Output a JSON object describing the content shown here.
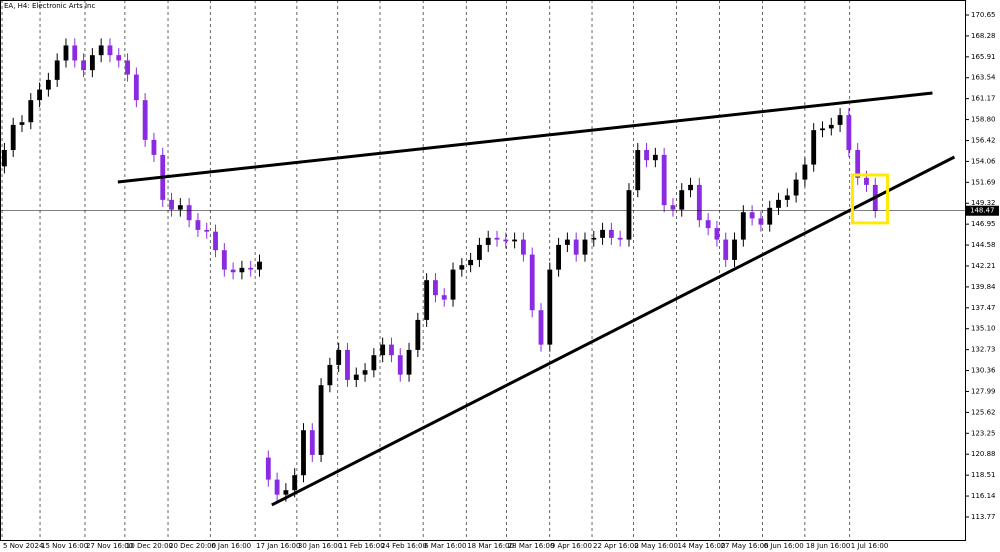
{
  "chart_data": {
    "type": "candlestick",
    "title": "EA, H4: Electronic Arts Inc",
    "up_color": "#000000",
    "down_color": "#8a2be2",
    "trendline_color": "#000000",
    "open": [
      153.5,
      155.35,
      158.2,
      158.5,
      161.0,
      162.2,
      163.3,
      165.5,
      167.2,
      165.5,
      164.4,
      166.1,
      167.2,
      166.1,
      165.5,
      163.9,
      161.0,
      156.5,
      154.8,
      149.7,
      148.6,
      149.1,
      147.4,
      146.3,
      146.1,
      144.0,
      141.8,
      141.5,
      142.0,
      141.8,
      120.5,
      118.0,
      116.3,
      116.8,
      118.5,
      123.6,
      120.8,
      128.7,
      131.0,
      132.7,
      129.3,
      129.9,
      130.4,
      132.1,
      133.3,
      132.1,
      129.9,
      132.7,
      136.1,
      140.6,
      138.9,
      138.4,
      141.8,
      142.3,
      142.9,
      144.6,
      145.4,
      145.2,
      145.0,
      145.2,
      143.5,
      137.2,
      133.3,
      141.8,
      144.6,
      145.2,
      143.5,
      145.2,
      145.4,
      146.3,
      145.4,
      145.2,
      150.8,
      155.35,
      154.2,
      154.8,
      149.1,
      148.6,
      150.8,
      151.4,
      147.4,
      146.5,
      145.2,
      142.9,
      145.2,
      148.3,
      147.6,
      146.9,
      148.8,
      149.7,
      150.2,
      152.0,
      153.7,
      157.6,
      157.8,
      158.2,
      159.3,
      155.35,
      152.2,
      151.4
    ],
    "high": [
      156.15,
      159.0,
      159.3,
      161.8,
      163.0,
      164.1,
      166.3,
      168.0,
      168.0,
      166.3,
      166.9,
      168.0,
      168.0,
      166.9,
      166.3,
      164.7,
      161.8,
      157.3,
      155.6,
      150.5,
      149.9,
      149.9,
      148.2,
      147.1,
      146.9,
      144.8,
      142.6,
      142.8,
      142.8,
      143.5,
      121.3,
      118.8,
      117.6,
      119.3,
      124.4,
      124.4,
      129.5,
      131.8,
      133.5,
      133.5,
      130.7,
      131.2,
      132.9,
      134.1,
      134.1,
      132.9,
      133.5,
      136.9,
      141.4,
      141.4,
      139.7,
      142.6,
      143.1,
      143.7,
      145.4,
      146.2,
      146.2,
      146.0,
      146.0,
      146.0,
      144.3,
      138.0,
      142.6,
      145.4,
      146.0,
      146.0,
      146.0,
      146.2,
      147.1,
      147.1,
      146.2,
      151.6,
      156.15,
      156.15,
      155.6,
      155.6,
      149.9,
      151.6,
      152.2,
      152.2,
      148.2,
      147.3,
      146.0,
      146.0,
      149.1,
      149.1,
      148.4,
      149.6,
      150.5,
      151.0,
      152.8,
      154.5,
      158.4,
      158.6,
      159.0,
      160.1,
      160.1,
      156.15,
      153.0,
      152.2
    ],
    "low": [
      152.7,
      154.55,
      157.4,
      157.7,
      160.2,
      161.4,
      162.5,
      164.7,
      164.7,
      163.6,
      163.6,
      165.3,
      165.3,
      164.7,
      163.1,
      160.2,
      155.7,
      154.0,
      148.9,
      147.8,
      147.8,
      146.6,
      145.5,
      145.3,
      143.2,
      141.0,
      140.7,
      140.7,
      141.0,
      141.0,
      117.2,
      115.5,
      115.5,
      116.0,
      117.7,
      120.0,
      120.0,
      127.9,
      130.2,
      128.5,
      128.5,
      129.1,
      129.6,
      131.3,
      131.3,
      129.1,
      129.1,
      131.9,
      135.3,
      138.1,
      137.6,
      137.6,
      141.0,
      141.5,
      142.1,
      143.8,
      144.4,
      144.2,
      144.2,
      142.7,
      136.4,
      132.5,
      132.5,
      141.0,
      143.8,
      142.7,
      142.7,
      144.4,
      144.6,
      144.6,
      144.4,
      144.4,
      150.0,
      153.4,
      153.4,
      148.3,
      147.8,
      147.8,
      150.0,
      146.6,
      145.7,
      144.4,
      142.1,
      142.1,
      144.4,
      146.8,
      146.1,
      146.1,
      148.0,
      148.9,
      149.4,
      151.2,
      152.9,
      156.8,
      157.0,
      157.4,
      154.55,
      151.4,
      150.6,
      147.67
    ],
    "close": [
      155.35,
      158.2,
      158.5,
      161.0,
      162.2,
      163.3,
      165.5,
      167.2,
      165.5,
      164.4,
      166.1,
      167.2,
      166.1,
      165.5,
      163.9,
      161.0,
      156.5,
      154.8,
      149.7,
      148.6,
      149.1,
      147.4,
      146.3,
      146.1,
      144.0,
      141.8,
      141.5,
      142.0,
      141.8,
      142.7,
      118.0,
      116.3,
      116.8,
      118.5,
      123.6,
      120.8,
      128.7,
      131.0,
      132.7,
      129.3,
      129.9,
      130.4,
      132.1,
      133.3,
      132.1,
      129.9,
      132.7,
      136.1,
      140.6,
      138.9,
      138.4,
      141.8,
      142.3,
      142.9,
      144.6,
      145.4,
      145.2,
      145.0,
      145.2,
      143.5,
      137.2,
      133.3,
      141.8,
      144.6,
      145.2,
      143.5,
      145.2,
      145.4,
      146.3,
      145.4,
      145.2,
      150.8,
      155.35,
      154.2,
      154.8,
      149.1,
      148.6,
      150.8,
      151.4,
      147.4,
      146.5,
      145.2,
      142.9,
      145.2,
      148.3,
      147.6,
      146.9,
      148.8,
      149.7,
      150.2,
      152.0,
      153.7,
      157.6,
      157.8,
      158.2,
      159.3,
      155.35,
      152.2,
      151.4,
      148.47
    ],
    "current_price": 148.47,
    "xlim": [
      -0.5,
      109.2
    ],
    "xticks": [
      {
        "value": -0.27,
        "label": "5 Nov 2024"
      },
      {
        "value": 4.05,
        "label": "15 Nov 16:00"
      },
      {
        "value": 9.16,
        "label": "27 Nov 16:00"
      },
      {
        "value": 13.7,
        "label": "10 Dec 20:00"
      },
      {
        "value": 18.6,
        "label": "20 Dec 20:00"
      },
      {
        "value": 23.4,
        "label": "6 Jan 16:00"
      },
      {
        "value": 28.5,
        "label": "17 Jan 16:00"
      },
      {
        "value": 33.25,
        "label": "30 Jan 16:00"
      },
      {
        "value": 37.9,
        "label": "11 Feb 16:00"
      },
      {
        "value": 42.7,
        "label": "24 Feb 16:00"
      },
      {
        "value": 47.6,
        "label": "6 Mar 16:00"
      },
      {
        "value": 52.5,
        "label": "18 Mar 16:00"
      },
      {
        "value": 57.1,
        "label": "28 Mar 16:00"
      },
      {
        "value": 62.0,
        "label": "9 Apr 16:00"
      },
      {
        "value": 66.8,
        "label": "22 Apr 16:00"
      },
      {
        "value": 71.5,
        "label": "2 May 16:00"
      },
      {
        "value": 76.4,
        "label": "14 May 16:00"
      },
      {
        "value": 81.3,
        "label": "27 May 16:00"
      },
      {
        "value": 86.2,
        "label": "6 Jun 16:00"
      },
      {
        "value": 91.0,
        "label": "18 Jun 16:00"
      },
      {
        "value": 96.1,
        "label": "1 Jul 16:00"
      }
    ],
    "ylim": [
      111.16,
      172.35
    ],
    "yticks": [
      170.65,
      168.28,
      165.91,
      163.54,
      161.17,
      {
        "value": 158.8,
        "label": "158.80"
      },
      156.42,
      154.06,
      151.69,
      149.32,
      146.95,
      144.58,
      142.21,
      139.84,
      137.47,
      {
        "value": 135.1,
        "label": "135.10"
      },
      132.73,
      130.36,
      127.99,
      125.62,
      123.25,
      120.88,
      118.51,
      116.14,
      113.77
    ],
    "trendlines": [
      {
        "x": [
          12.9,
          105.5
        ],
        "y": [
          151.73,
          161.81
        ]
      },
      {
        "x": [
          30.4,
          108.0
        ],
        "y": [
          115.13,
          154.56
        ]
      }
    ],
    "highlight_box": {
      "x": [
        96.4,
        100.4
      ],
      "y": [
        147.09,
        152.52
      ],
      "color": "#ffeb00"
    }
  }
}
